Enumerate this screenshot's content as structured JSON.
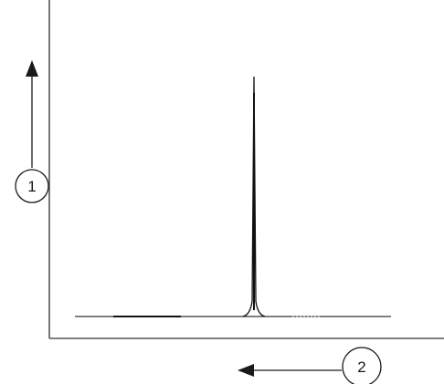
{
  "callouts": {
    "y_axis_marker": "1",
    "x_axis_marker": "2"
  },
  "colors": {
    "axis": "#555555",
    "signal": "#333333",
    "peak": "#111111",
    "arrow": "#1a1a1a"
  }
}
